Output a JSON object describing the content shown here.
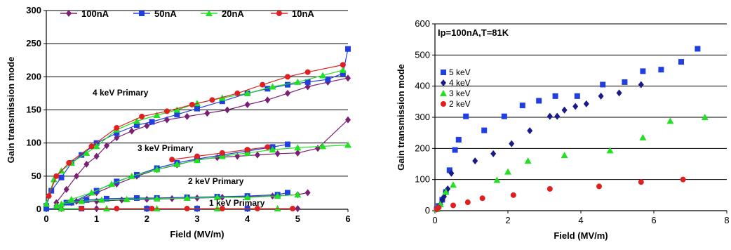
{
  "chart_data": [
    {
      "type": "line",
      "ylabel": "Gain transmission mode",
      "xlabel": "Field (MV/m)",
      "xlim": [
        0,
        6
      ],
      "ylim": [
        0,
        300
      ],
      "xticks": [
        "0",
        "1",
        "2",
        "3",
        "4",
        "5",
        "6"
      ],
      "yticks": [
        "0",
        "50",
        "100",
        "150",
        "200",
        "250",
        "300"
      ],
      "grid": "horizontal",
      "legend": "top",
      "annotations": [
        "4 keV Primary",
        "3 keV Primary",
        "2 keV Primary",
        "1 keV Primary"
      ],
      "series": [
        {
          "name": "100nA",
          "color": "#7b1f74",
          "marker": "diamond",
          "groups": [
            [
              [
                0.2,
                10
              ],
              [
                0.4,
                30
              ],
              [
                0.6,
                50
              ],
              [
                0.8,
                68
              ],
              [
                1.0,
                80
              ],
              [
                1.2,
                96
              ],
              [
                1.4,
                108
              ],
              [
                1.7,
                118
              ],
              [
                2.0,
                126
              ],
              [
                2.4,
                135
              ],
              [
                2.8,
                140
              ],
              [
                3.2,
                145
              ],
              [
                3.6,
                150
              ],
              [
                4.0,
                158
              ],
              [
                4.4,
                165
              ],
              [
                4.8,
                175
              ],
              [
                5.2,
                185
              ],
              [
                5.6,
                192
              ],
              [
                6.0,
                198
              ]
            ],
            [
              [
                0.3,
                5
              ],
              [
                0.6,
                12
              ],
              [
                1.0,
                25
              ],
              [
                1.4,
                38
              ],
              [
                1.8,
                50
              ],
              [
                2.2,
                60
              ],
              [
                2.6,
                67
              ],
              [
                3.0,
                75
              ],
              [
                3.4,
                78
              ],
              [
                3.8,
                80
              ],
              [
                4.2,
                82
              ],
              [
                4.6,
                84
              ],
              [
                5.0,
                85
              ],
              [
                5.4,
                92
              ],
              [
                6.0,
                135
              ]
            ],
            [
              [
                0.2,
                5
              ],
              [
                0.5,
                10
              ],
              [
                1.0,
                12
              ],
              [
                1.5,
                14
              ],
              [
                2.0,
                15
              ],
              [
                2.5,
                16
              ],
              [
                3.0,
                17
              ],
              [
                3.5,
                18
              ],
              [
                4.0,
                19
              ],
              [
                4.5,
                20
              ],
              [
                5.0,
                22
              ],
              [
                5.2,
                25
              ]
            ],
            [
              [
                0.3,
                1
              ],
              [
                1.0,
                1
              ],
              [
                2.0,
                1
              ],
              [
                3.0,
                1
              ],
              [
                4.0,
                1
              ],
              [
                5.0,
                1
              ]
            ]
          ]
        },
        {
          "name": "50nA",
          "color": "#1f3fe0",
          "marker": "square",
          "groups": [
            [
              [
                0.0,
                5
              ],
              [
                0.1,
                28
              ],
              [
                0.3,
                48
              ],
              [
                0.5,
                70
              ],
              [
                0.7,
                82
              ],
              [
                1.0,
                100
              ],
              [
                1.4,
                115
              ],
              [
                1.8,
                127
              ],
              [
                2.1,
                132
              ],
              [
                2.6,
                143
              ],
              [
                3.0,
                152
              ],
              [
                3.5,
                163
              ],
              [
                4.0,
                175
              ],
              [
                4.4,
                182
              ],
              [
                4.8,
                188
              ],
              [
                5.2,
                192
              ],
              [
                5.6,
                196
              ],
              [
                5.9,
                205
              ],
              [
                6.0,
                242
              ]
            ],
            [
              [
                0.5,
                10
              ],
              [
                1.0,
                28
              ],
              [
                1.4,
                42
              ],
              [
                1.8,
                52
              ],
              [
                2.2,
                62
              ],
              [
                2.6,
                70
              ],
              [
                3.0,
                76
              ],
              [
                3.5,
                82
              ],
              [
                4.0,
                88
              ],
              [
                4.5,
                94
              ],
              [
                4.8,
                98
              ]
            ],
            [
              [
                0.4,
                10
              ],
              [
                0.8,
                14
              ],
              [
                1.2,
                16
              ],
              [
                1.8,
                17
              ],
              [
                2.2,
                17
              ],
              [
                2.8,
                18
              ],
              [
                3.4,
                19
              ],
              [
                4.0,
                20
              ],
              [
                4.6,
                22
              ],
              [
                4.8,
                25
              ]
            ],
            [
              [
                0.0,
                1
              ],
              [
                0.7,
                1
              ],
              [
                2.0,
                1
              ],
              [
                3.0,
                1
              ],
              [
                4.0,
                1
              ]
            ]
          ]
        },
        {
          "name": "20nA",
          "color": "#22e022",
          "marker": "triangle",
          "groups": [
            [
              [
                0.0,
                8
              ],
              [
                0.15,
                45
              ],
              [
                0.3,
                58
              ],
              [
                0.5,
                70
              ],
              [
                0.8,
                85
              ],
              [
                1.0,
                95
              ],
              [
                1.4,
                120
              ],
              [
                1.8,
                133
              ],
              [
                2.2,
                142
              ],
              [
                2.6,
                150
              ],
              [
                3.0,
                160
              ],
              [
                3.5,
                168
              ],
              [
                4.0,
                175
              ],
              [
                4.5,
                185
              ],
              [
                5.0,
                192
              ],
              [
                5.5,
                202
              ],
              [
                5.9,
                210
              ]
            ],
            [
              [
                0.2,
                5
              ],
              [
                0.5,
                15
              ],
              [
                0.9,
                25
              ],
              [
                1.3,
                38
              ],
              [
                1.7,
                50
              ],
              [
                2.2,
                60
              ],
              [
                2.6,
                68
              ],
              [
                3.0,
                74
              ],
              [
                3.5,
                80
              ],
              [
                4.0,
                85
              ],
              [
                4.5,
                90
              ],
              [
                5.0,
                93
              ],
              [
                5.5,
                95
              ],
              [
                6.0,
                97
              ]
            ],
            [
              [
                0.3,
                8
              ],
              [
                0.7,
                12
              ],
              [
                1.1,
                14
              ],
              [
                1.6,
                15
              ],
              [
                2.2,
                16
              ],
              [
                2.8,
                17
              ],
              [
                3.4,
                18
              ],
              [
                4.0,
                18
              ],
              [
                4.6,
                20
              ],
              [
                5.0,
                22
              ]
            ],
            [
              [
                0.3,
                1
              ],
              [
                1.2,
                1
              ],
              [
                2.2,
                1
              ],
              [
                3.4,
                1
              ],
              [
                4.6,
                1
              ]
            ]
          ]
        },
        {
          "name": "10nA",
          "color": "#e02020",
          "marker": "circle",
          "groups": [
            [
              [
                0.05,
                20
              ],
              [
                0.2,
                50
              ],
              [
                0.45,
                70
              ],
              [
                0.9,
                95
              ],
              [
                1.4,
                123
              ],
              [
                1.9,
                140
              ],
              [
                2.4,
                148
              ],
              [
                2.9,
                158
              ],
              [
                3.3,
                165
              ],
              [
                3.8,
                175
              ],
              [
                4.3,
                188
              ],
              [
                4.8,
                200
              ],
              [
                5.2,
                207
              ],
              [
                5.9,
                218
              ]
            ],
            [
              [
                2.5,
                75
              ],
              [
                3.0,
                80
              ],
              [
                3.5,
                85
              ],
              [
                4.0,
                90
              ],
              [
                4.4,
                94
              ]
            ],
            [
              [
                0.7,
                1
              ],
              [
                1.4,
                1
              ],
              [
                2.1,
                1
              ],
              [
                2.8,
                1
              ],
              [
                3.5,
                1
              ],
              [
                4.2,
                1
              ],
              [
                4.9,
                1
              ]
            ]
          ]
        }
      ]
    },
    {
      "type": "scatter",
      "title": "Ip=100nA,T=81K",
      "ylabel": "Gain transmission mode",
      "xlabel": "Field (MV/m)",
      "xlim": [
        0,
        8
      ],
      "ylim": [
        0,
        600
      ],
      "xticks": [
        "0",
        "2",
        "4",
        "6",
        "8"
      ],
      "yticks": [
        "0",
        "100",
        "200",
        "300",
        "400",
        "500",
        "600"
      ],
      "grid": "horizontal",
      "legend": "left",
      "series": [
        {
          "name": "5 keV",
          "color": "#1f3fe0",
          "marker": "square",
          "points": [
            [
              0.05,
              5
            ],
            [
              0.1,
              15
            ],
            [
              0.2,
              35
            ],
            [
              0.3,
              60
            ],
            [
              0.4,
              130
            ],
            [
              0.55,
              195
            ],
            [
              0.65,
              228
            ],
            [
              0.85,
              303
            ],
            [
              1.35,
              258
            ],
            [
              1.9,
              303
            ],
            [
              2.4,
              338
            ],
            [
              2.85,
              353
            ],
            [
              3.3,
              368
            ],
            [
              3.9,
              368
            ],
            [
              4.6,
              405
            ],
            [
              5.2,
              413
            ],
            [
              5.7,
              448
            ],
            [
              6.2,
              453
            ],
            [
              6.75,
              478
            ],
            [
              7.2,
              520
            ]
          ]
        },
        {
          "name": "4 keV",
          "color": "#1a1a8a",
          "marker": "diamond",
          "points": [
            [
              0.05,
              5
            ],
            [
              0.1,
              10
            ],
            [
              0.15,
              20
            ],
            [
              0.2,
              35
            ],
            [
              0.25,
              45
            ],
            [
              0.3,
              60
            ],
            [
              0.35,
              70
            ],
            [
              0.45,
              120
            ],
            [
              1.1,
              160
            ],
            [
              1.6,
              183
            ],
            [
              2.1,
              215
            ],
            [
              2.6,
              257
            ],
            [
              3.15,
              303
            ],
            [
              3.35,
              303
            ],
            [
              3.55,
              323
            ],
            [
              3.85,
              335
            ],
            [
              4.15,
              343
            ],
            [
              4.55,
              368
            ],
            [
              5.05,
              378
            ],
            [
              5.65,
              405
            ]
          ]
        },
        {
          "name": "3 keV",
          "color": "#22e022",
          "marker": "triangle",
          "points": [
            [
              0.05,
              5
            ],
            [
              0.15,
              20
            ],
            [
              0.3,
              60
            ],
            [
              0.5,
              83
            ],
            [
              1.7,
              98
            ],
            [
              2.0,
              125
            ],
            [
              2.55,
              160
            ],
            [
              3.55,
              178
            ],
            [
              4.8,
              193
            ],
            [
              5.7,
              235
            ],
            [
              6.45,
              288
            ],
            [
              7.4,
              300
            ]
          ]
        },
        {
          "name": "2 keV",
          "color": "#e02020",
          "marker": "circle",
          "points": [
            [
              0.05,
              5
            ],
            [
              0.1,
              10
            ],
            [
              0.5,
              17
            ],
            [
              0.9,
              27
            ],
            [
              1.3,
              40
            ],
            [
              2.15,
              50
            ],
            [
              3.15,
              70
            ],
            [
              4.5,
              78
            ],
            [
              5.65,
              92
            ],
            [
              6.8,
              100
            ]
          ]
        }
      ]
    }
  ]
}
